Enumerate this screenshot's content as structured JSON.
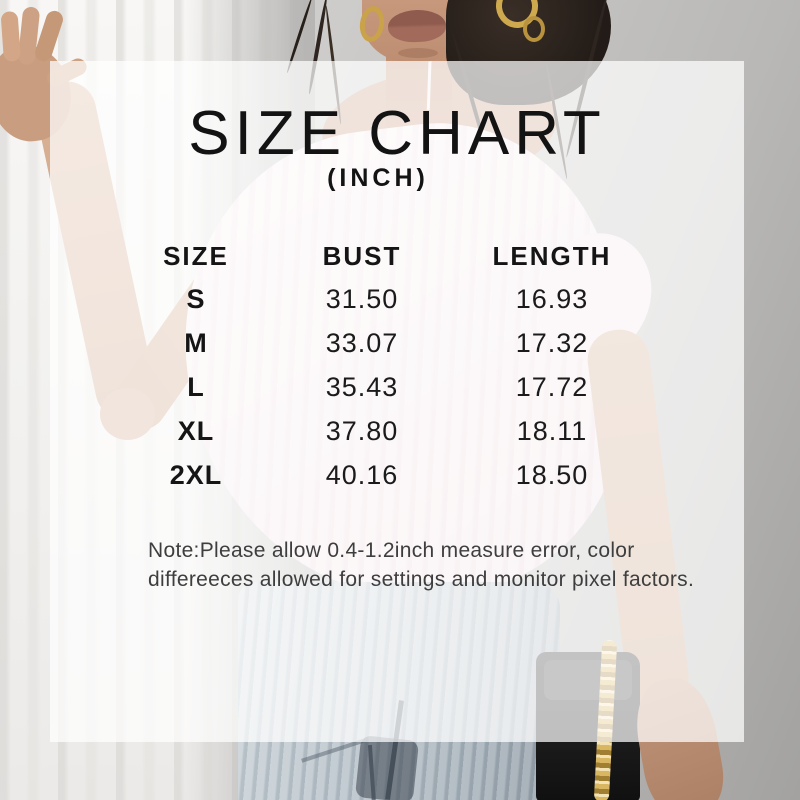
{
  "title": {
    "text": "SIZE CHART",
    "unit": "(INCH)"
  },
  "size_table": {
    "columns": [
      "SIZE",
      "BUST",
      "LENGTH"
    ],
    "rows": [
      {
        "size": "S",
        "bust": "31.50",
        "length": "16.93"
      },
      {
        "size": "M",
        "bust": "33.07",
        "length": "17.32"
      },
      {
        "size": "L",
        "bust": "35.43",
        "length": "17.72"
      },
      {
        "size": "XL",
        "bust": "37.80",
        "length": "18.11"
      },
      {
        "size": "2XL",
        "bust": "40.16",
        "length": "18.50"
      }
    ]
  },
  "note": {
    "line1": "Note:Please allow 0.4-1.2inch measure error, color",
    "line2": "differeeces allowed for settings and monitor pixel factors."
  },
  "colors": {
    "panel": "#ffffff",
    "heading_text": "#131313",
    "note_text": "#3e3e3e",
    "garment_pink": "#f0dee2",
    "gold_accent": "#c9a24a"
  },
  "chart_data": {
    "type": "table",
    "title": "SIZE CHART (INCH)",
    "units": "inch",
    "columns": [
      "SIZE",
      "BUST",
      "LENGTH"
    ],
    "rows": [
      [
        "S",
        "31.50",
        "16.93"
      ],
      [
        "M",
        "33.07",
        "17.32"
      ],
      [
        "L",
        "35.43",
        "17.72"
      ],
      [
        "XL",
        "37.80",
        "18.11"
      ],
      [
        "2XL",
        "40.16",
        "18.50"
      ]
    ]
  }
}
